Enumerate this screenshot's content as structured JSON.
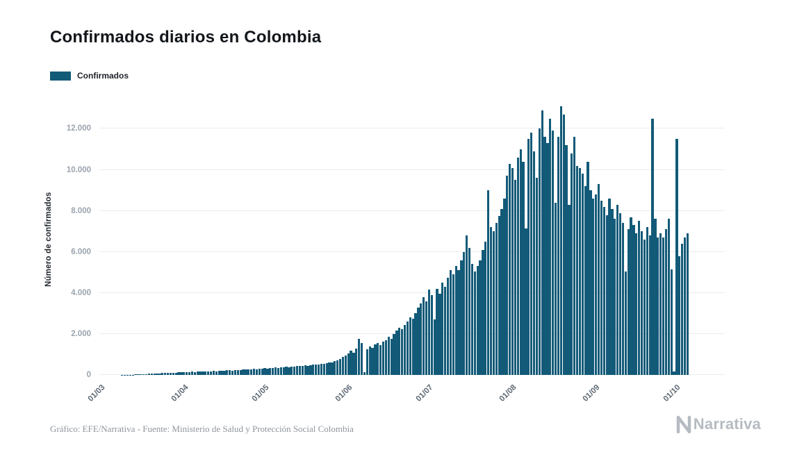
{
  "header": {
    "title": "Confirmados diarios en Colombia"
  },
  "legend": {
    "label": "Confirmados"
  },
  "footer": {
    "credit": "Gráfico: EFE/Narrativa - Fuente: Ministerio de Salud y Protección Social Colombia",
    "brand": "Narrativa"
  },
  "chart_data": {
    "type": "bar",
    "title": "Confirmados diarios en Colombia",
    "xlabel": "",
    "ylabel": "Número de confirmados",
    "series_name": "Confirmados",
    "legend_position": "top-left",
    "grid": true,
    "bar_color": "#135a78",
    "ylim": [
      0,
      13200
    ],
    "y_ticks": [
      0,
      2000,
      4000,
      6000,
      8000,
      10000,
      12000
    ],
    "y_tick_labels": [
      "0",
      "2.000",
      "4.000",
      "6.000",
      "8.000",
      "10.000",
      "12.000"
    ],
    "x_tick_labels": [
      "01/03",
      "01/04",
      "01/05",
      "01/06",
      "01/07",
      "01/08",
      "01/09",
      "01/10"
    ],
    "x_tick_day_index": [
      0,
      31,
      61,
      92,
      122,
      153,
      184,
      214
    ],
    "values": [
      0,
      0,
      0,
      0,
      0,
      1,
      1,
      2,
      3,
      6,
      9,
      13,
      16,
      24,
      28,
      33,
      45,
      50,
      57,
      62,
      66,
      72,
      78,
      88,
      94,
      102,
      108,
      116,
      110,
      121,
      128,
      134,
      149,
      142,
      159,
      152,
      168,
      161,
      178,
      172,
      185,
      179,
      192,
      186,
      198,
      205,
      214,
      222,
      230,
      218,
      238,
      246,
      254,
      262,
      258,
      272,
      280,
      292,
      286,
      304,
      322,
      338,
      320,
      352,
      336,
      368,
      354,
      382,
      370,
      398,
      386,
      412,
      400,
      428,
      444,
      430,
      462,
      448,
      478,
      496,
      514,
      500,
      534,
      552,
      574,
      596,
      624,
      668,
      720,
      790,
      870,
      950,
      1050,
      1200,
      1100,
      1300,
      1766,
      1550,
      120,
      1250,
      1400,
      1330,
      1480,
      1560,
      1450,
      1620,
      1700,
      1850,
      1760,
      2000,
      2150,
      2300,
      2220,
      2450,
      2600,
      2800,
      2750,
      3000,
      3274,
      3500,
      3800,
      3600,
      4163,
      3900,
      2700,
      4200,
      3960,
      4500,
      4300,
      4750,
      5100,
      4900,
      5300,
      5100,
      5600,
      6000,
      6800,
      6200,
      5400,
      5050,
      5300,
      5600,
      6100,
      6500,
      9000,
      7200,
      7000,
      7400,
      7750,
      8100,
      8600,
      9700,
      10300,
      10100,
      9500,
      10600,
      11000,
      10400,
      7130,
      11500,
      11800,
      10900,
      9600,
      12000,
      12900,
      11600,
      11300,
      12500,
      11900,
      8400,
      11600,
      13100,
      12700,
      11200,
      8300,
      10800,
      11600,
      10200,
      10100,
      9800,
      9200,
      10400,
      9000,
      8600,
      8800,
      9300,
      8500,
      8200,
      7800,
      8600,
      8100,
      7600,
      8300,
      7900,
      7400,
      5050,
      7100,
      7700,
      7300,
      6900,
      7500,
      7000,
      6600,
      7200,
      6800,
      12494,
      7600,
      6700,
      6900,
      6700,
      7100,
      7600,
      5159,
      160,
      11500,
      5800,
      6400,
      6700,
      6900
    ]
  }
}
